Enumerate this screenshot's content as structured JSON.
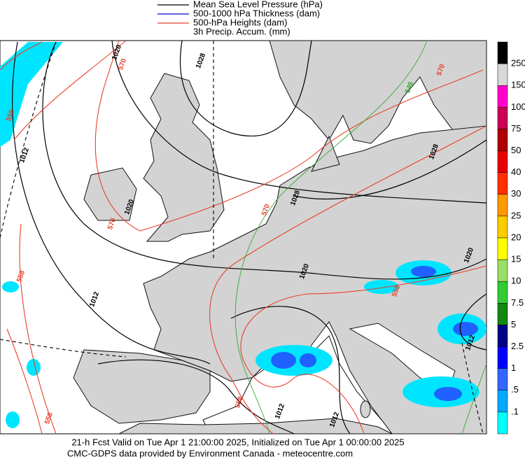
{
  "legend": {
    "items": [
      {
        "label": "Mean Sea Level Pressure (hPa)",
        "color": "#000000"
      },
      {
        "label": "500-1000 hPa Thickness (dam)",
        "color": "#0000cc"
      },
      {
        "label": "500-hPa Heights (dam)",
        "color": "#e8402a"
      },
      {
        "label": "3h Precip. Accum. (mm)",
        "color": null
      }
    ]
  },
  "colorbar": {
    "labels": [
      "250",
      "150",
      "100",
      "75",
      "50",
      "40",
      "30",
      "25",
      "20",
      "15",
      "10",
      "7.5",
      "5",
      "2.5",
      "1",
      ".5",
      ".1"
    ],
    "colors": [
      "#000000",
      "#d8d8d8",
      "#ff00cc",
      "#cc0055",
      "#b00000",
      "#e80000",
      "#ff3000",
      "#ff9900",
      "#ffcc00",
      "#ffff00",
      "#99e066",
      "#33cc33",
      "#118811",
      "#000088",
      "#0000ff",
      "#3366ff",
      "#00aaff",
      "#00ffff"
    ]
  },
  "contour_labels": [
    "1020",
    "1028",
    "570",
    "558",
    "1012",
    "1020",
    "570",
    "570",
    "1028",
    "1028",
    "570",
    "546",
    "558",
    "1012",
    "1020",
    "558",
    "1020",
    "1012",
    "558",
    "1012",
    "1012",
    "558"
  ],
  "footer": {
    "line1": "21-h Fcst Valid on Tue Apr  1 21:00:00 2025, Initialized on Tue Apr  1 00:00:00 2025",
    "line2": "CMC-GDPS data provided by Environment Canada - meteocentre.com"
  }
}
